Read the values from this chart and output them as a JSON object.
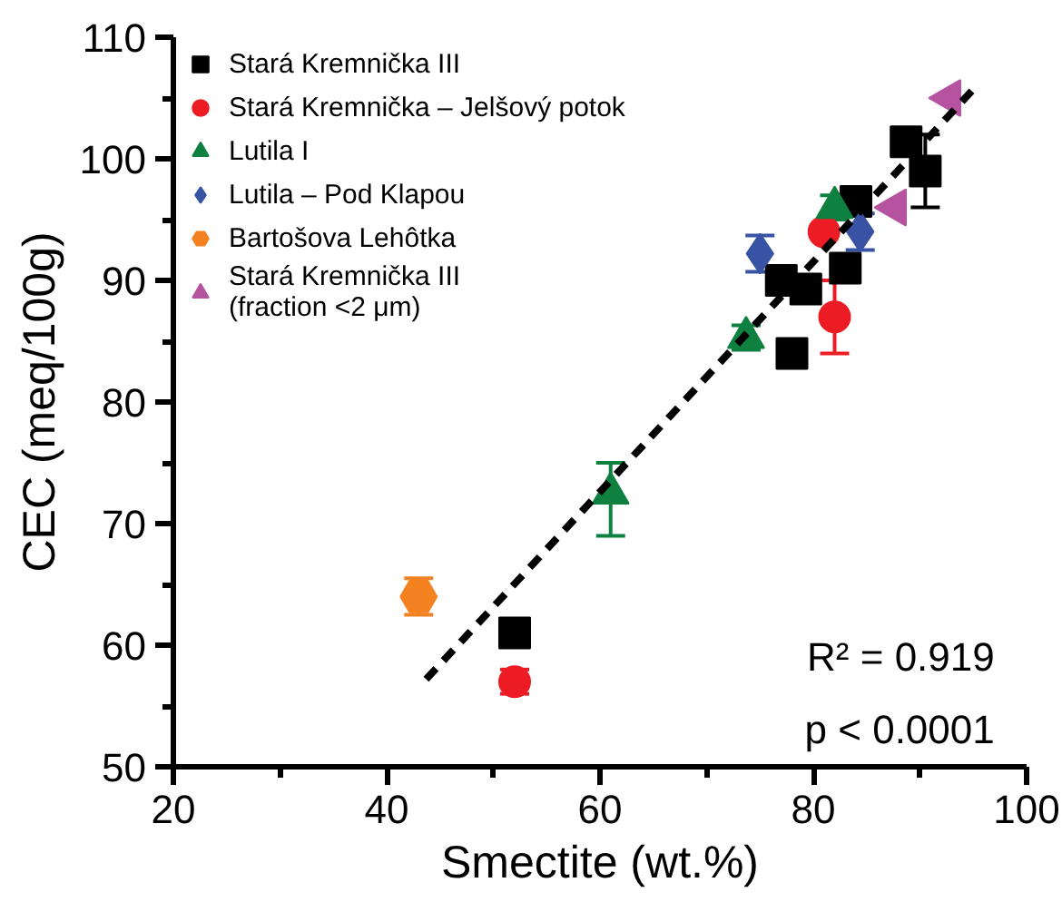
{
  "chart_data": {
    "type": "scatter",
    "xlabel": "Smectite (wt.%)",
    "ylabel": "CEC (meq/100g)",
    "xlim": [
      20,
      100
    ],
    "xticks": [
      20,
      40,
      60,
      80,
      100
    ],
    "ylim": [
      50,
      110
    ],
    "yticks": [
      50,
      60,
      70,
      80,
      90,
      100,
      110
    ],
    "grid": false,
    "legend": "top left",
    "annotations": [
      "R² = 0.919",
      "p < 0.0001"
    ],
    "series": [
      {
        "name": "Stará Kremnička III",
        "color": "#000000",
        "marker": "square",
        "x": [
          52,
          78,
          77,
          79.3,
          83,
          84,
          88.7,
          90.5
        ],
        "values": [
          61,
          84,
          90,
          89.3,
          91,
          96.5,
          101.4,
          99
        ],
        "errors": [
          null,
          1,
          1,
          1,
          1,
          null,
          null,
          3
        ]
      },
      {
        "name": "Stará Kremnička – Jelšový potok",
        "color": "#ed1c24",
        "marker": "circle",
        "x": [
          52,
          82,
          81
        ],
        "values": [
          57,
          87,
          94
        ],
        "errors": [
          1,
          3,
          null
        ]
      },
      {
        "name": "Lutila I",
        "color": "#0e8040",
        "marker": "triangle",
        "x": [
          61,
          73.7,
          82
        ],
        "values": [
          72.5,
          85.3,
          96
        ],
        "errors": [
          [
            69,
            75
          ],
          1,
          1
        ]
      },
      {
        "name": "Lutila – Pod Klapou",
        "color": "#3953a4",
        "marker": "diamond",
        "x": [
          75,
          84.4
        ],
        "values": [
          92.2,
          94
        ],
        "errors": [
          1.5,
          1.5
        ]
      },
      {
        "name": "Bartošova Lehôtka",
        "color": "#f58220",
        "x": [
          43
        ],
        "values": [
          64
        ],
        "errors": [
          1.5
        ]
      },
      {
        "name": "Stará Kremnička III\n(fraction <2 μm)",
        "color": "#b553a0",
        "marker": "triangle_left",
        "x": [
          87.7,
          92.8
        ],
        "values": [
          96,
          105
        ],
        "errors": [
          null,
          null
        ]
      },
      {
        "type": "line",
        "color": "#000000",
        "line_style": "dashed",
        "x": [
          43.7,
          95.2
        ],
        "values": [
          57.2,
          105.9
        ]
      }
    ]
  }
}
